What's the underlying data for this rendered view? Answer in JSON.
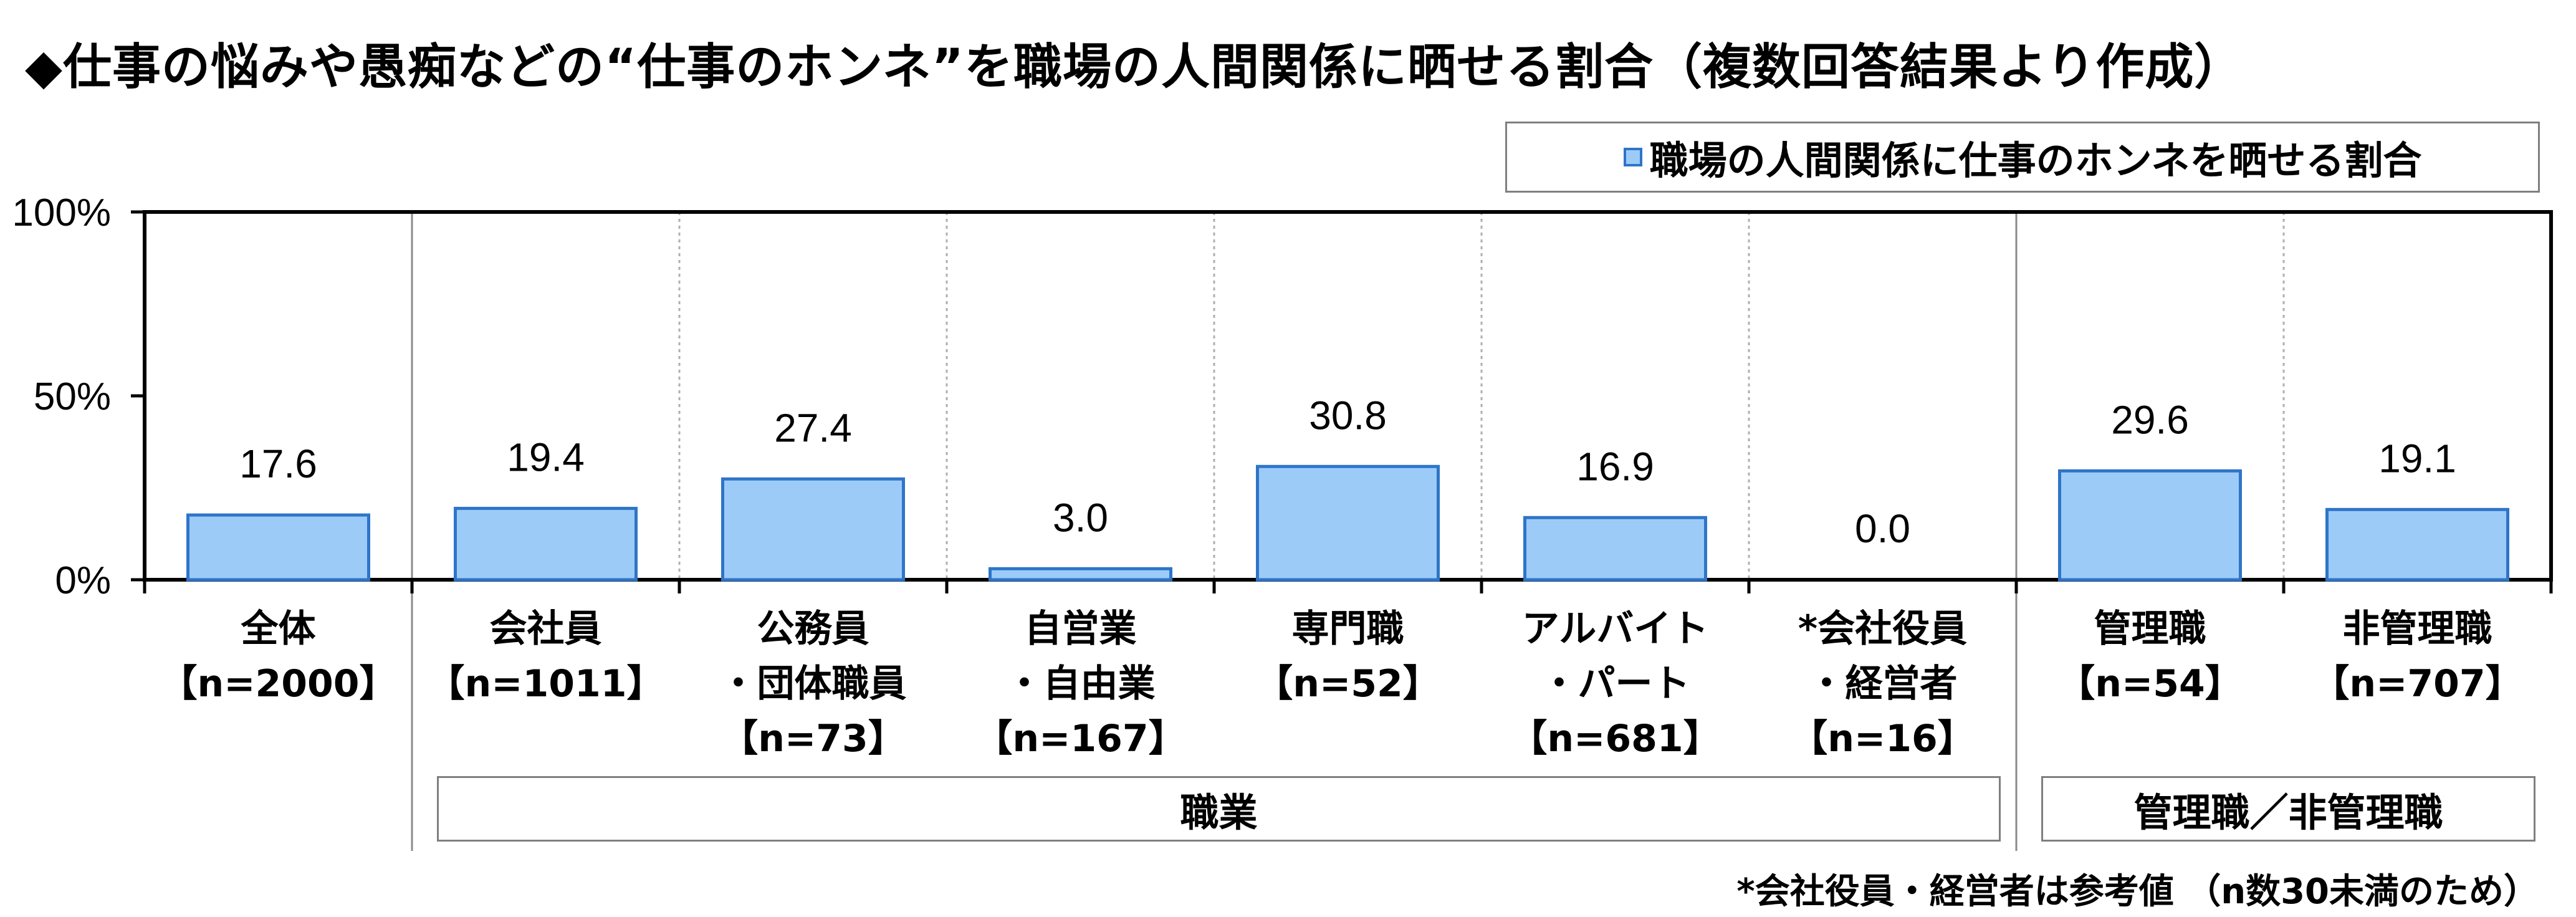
{
  "title": "◆仕事の悩みや愚痴などの“仕事のホンネ”を職場の人間関係に晒せる割合（複数回答結果より作成）",
  "legend": {
    "label": "職場の人間関係に仕事のホンネを晒せる割合"
  },
  "colors": {
    "bar_fill": "#9dcbf8",
    "bar_stroke": "#2e75c9"
  },
  "chart_data": {
    "type": "bar",
    "categories": [
      [
        "全体",
        "【n=2000】"
      ],
      [
        "会社員",
        "【n=1011】"
      ],
      [
        "公務員",
        "・団体職員",
        "【n=73】"
      ],
      [
        "自営業",
        "・自由業",
        "【n=167】"
      ],
      [
        "専門職",
        "【n=52】"
      ],
      [
        "アルバイト",
        "・パート",
        "【n=681】"
      ],
      [
        "*会社役員",
        "・経営者",
        "【n=16】"
      ],
      [
        "管理職",
        "【n=54】"
      ],
      [
        "非管理職",
        "【n=707】"
      ]
    ],
    "series": [
      {
        "name": "職場の人間関係に仕事のホンネを晒せる割合",
        "values": [
          17.6,
          19.4,
          27.4,
          3.0,
          30.8,
          16.9,
          0.0,
          29.6,
          19.1
        ]
      }
    ],
    "value_labels": [
      "17.6",
      "19.4",
      "27.4",
      "3.0",
      "30.8",
      "16.9",
      "0.0",
      "29.6",
      "19.1"
    ],
    "ylim": [
      0,
      100
    ],
    "yticks": [
      "0%",
      "50%",
      "100%"
    ],
    "legend_position": "top-right",
    "groups": [
      {
        "label": "職業",
        "from": 1,
        "to": 6
      },
      {
        "label": "管理職／非管理職",
        "from": 7,
        "to": 8
      }
    ]
  },
  "footnote": "*会社役員・経営者は参考値 （n数30未満のため）"
}
